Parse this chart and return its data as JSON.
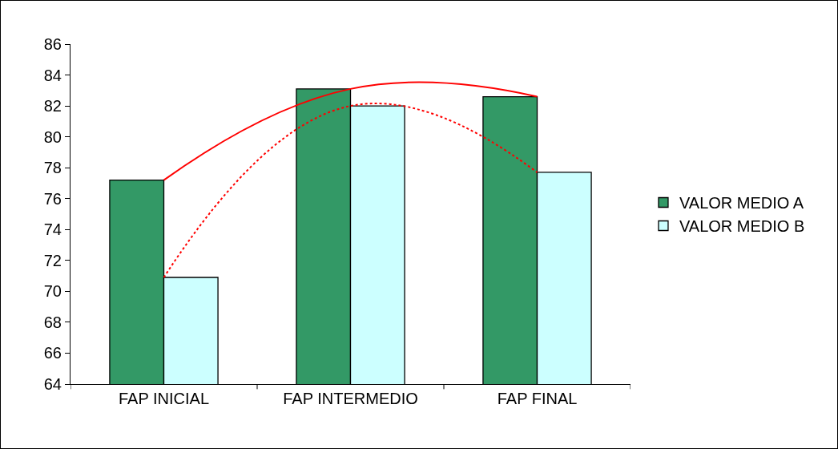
{
  "chart_data": {
    "type": "bar",
    "categories": [
      "FAP INICIAL",
      "FAP INTERMEDIO",
      "FAP FINAL"
    ],
    "series": [
      {
        "name": "VALOR MEDIO A",
        "color": "#339966",
        "values": [
          77.2,
          83.1,
          82.6
        ]
      },
      {
        "name": "VALOR MEDIO B",
        "color": "#ccffff",
        "values": [
          70.9,
          82.0,
          77.7
        ]
      },
      {
        "type": "line",
        "color": "#ff0000",
        "line_style": "solid",
        "values": [
          77.2,
          83.1,
          82.6
        ]
      },
      {
        "type": "line",
        "color": "#ff0000",
        "line_style": "dotted",
        "values": [
          70.9,
          82.0,
          77.7
        ]
      }
    ],
    "ylim": [
      64,
      86
    ],
    "yticks": [
      64,
      66,
      68,
      70,
      72,
      74,
      76,
      78,
      80,
      82,
      84,
      86
    ],
    "grid": false,
    "legend": "right",
    "marker": "none"
  }
}
